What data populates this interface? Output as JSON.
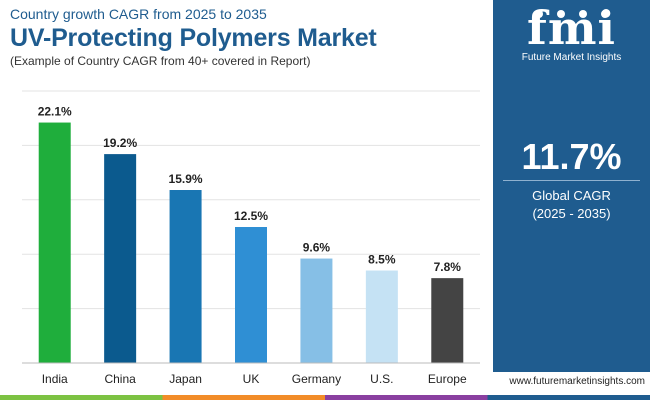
{
  "header": {
    "subtitle_top": "Country growth CAGR from 2025 to 2035",
    "title": "UV-Protecting Polymers Market",
    "subtitle_bottom": "(Example of Country CAGR from 40+ covered in Report)"
  },
  "sidebar": {
    "logo_mark": "fmi",
    "logo_text": "Future Market Insights",
    "big_value": "11.7%",
    "cagr_label": "Global CAGR",
    "cagr_period": "(2025 - 2035)"
  },
  "footer": {
    "website": "www.futuremarketinsights.com"
  },
  "colors": {
    "brand_blue": "#1f5c8f",
    "footer_segments": [
      "#7cc242",
      "#f28c28",
      "#8a3fa0",
      "#1f5c8f"
    ]
  },
  "chart_data": {
    "type": "bar",
    "categories": [
      "India",
      "China",
      "Japan",
      "UK",
      "Germany",
      "U.S.",
      "Europe"
    ],
    "values": [
      22.1,
      19.2,
      15.9,
      12.5,
      9.6,
      8.5,
      7.8
    ],
    "value_labels": [
      "22.1%",
      "19.2%",
      "15.9%",
      "12.5%",
      "9.6%",
      "8.5%",
      "7.8%"
    ],
    "bar_colors": [
      "#1fae3c",
      "#0b5a8e",
      "#1976b3",
      "#2f8fd4",
      "#86bfe6",
      "#c5e2f4",
      "#444444"
    ],
    "ylim": [
      0,
      25
    ],
    "grid": true
  }
}
